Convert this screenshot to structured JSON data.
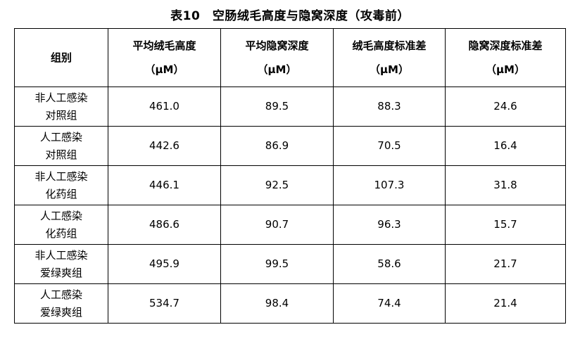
{
  "title": "表10　空肠绒毛高度与隐窝深度（攻毒前）",
  "headers": [
    {
      "label": "组别",
      "unit": ""
    },
    {
      "label": "平均绒毛高度",
      "unit": "（μM）"
    },
    {
      "label": "平均隐窝深度",
      "unit": "（μM）"
    },
    {
      "label": "绒毛高度标准差",
      "unit": "（μM）"
    },
    {
      "label": "隐窝深度标准差",
      "unit": "（μM）"
    }
  ],
  "rows": [
    {
      "group": [
        "非人工感染",
        "对照组"
      ],
      "values": [
        "461.0",
        "89.5",
        "88.3",
        "24.6"
      ]
    },
    {
      "group": [
        "人工感染",
        "对照组"
      ],
      "values": [
        "442.6",
        "86.9",
        "70.5",
        "16.4"
      ]
    },
    {
      "group": [
        "非人工感染",
        "化药组"
      ],
      "values": [
        "446.1",
        "92.5",
        "107.3",
        "31.8"
      ]
    },
    {
      "group": [
        "人工感染",
        "化药组"
      ],
      "values": [
        "486.6",
        "90.7",
        "96.3",
        "15.7"
      ]
    },
    {
      "group": [
        "非人工感染",
        "爱绿爽组"
      ],
      "values": [
        "495.9",
        "99.5",
        "58.6",
        "21.7"
      ]
    },
    {
      "group": [
        "人工感染",
        "爱绿爽组"
      ],
      "values": [
        "534.7",
        "98.4",
        "74.4",
        "21.4"
      ]
    }
  ]
}
